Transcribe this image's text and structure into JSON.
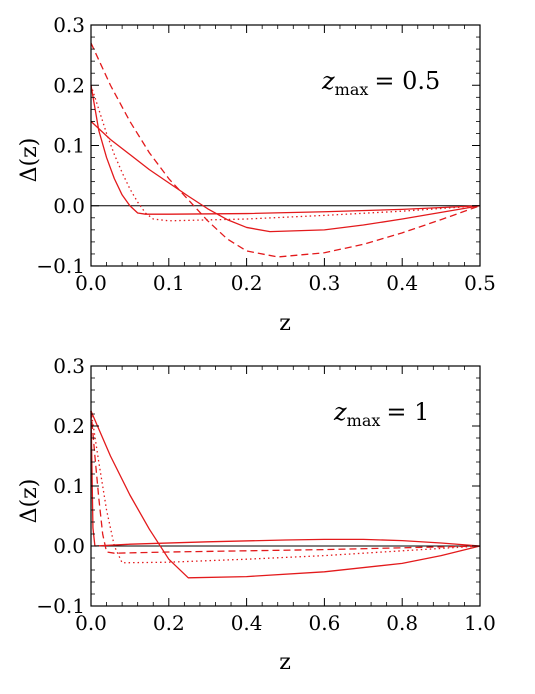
{
  "colors": {
    "series": "#e31a1c",
    "axis": "#000000"
  },
  "chart_data": [
    {
      "type": "line",
      "annotation": {
        "var": "z",
        "sub": "max",
        "rest": "= 0.5"
      },
      "xlabel": "z",
      "ylabel": "Δ(z)",
      "xlim": [
        0,
        0.5
      ],
      "ylim": [
        -0.1,
        0.3
      ],
      "xticks": [
        0,
        0.1,
        0.2,
        0.3,
        0.4,
        0.5
      ],
      "xtick_labels": [
        "0.0",
        "0.1",
        "0.2",
        "0.3",
        "0.4",
        "0.5"
      ],
      "yticks": [
        -0.1,
        0,
        0.1,
        0.2,
        0.3
      ],
      "ytick_labels": [
        "−0.1",
        "0.0",
        "0.1",
        "0.2",
        "0.3"
      ],
      "hline": 0,
      "series": [
        {
          "style": "solid",
          "x": [
            0,
            0.01,
            0.02,
            0.03,
            0.04,
            0.05,
            0.06,
            0.07,
            0.1,
            0.2,
            0.3,
            0.4,
            0.5
          ],
          "y": [
            0.2,
            0.125,
            0.08,
            0.045,
            0.018,
            0.0,
            -0.012,
            -0.014,
            -0.014,
            -0.013,
            -0.01,
            -0.006,
            0.0
          ]
        },
        {
          "style": "solid",
          "x": [
            0,
            0.025,
            0.05,
            0.075,
            0.1,
            0.125,
            0.15,
            0.175,
            0.2,
            0.23,
            0.3,
            0.35,
            0.4,
            0.45,
            0.5
          ],
          "y": [
            0.14,
            0.11,
            0.085,
            0.06,
            0.038,
            0.016,
            -0.005,
            -0.023,
            -0.036,
            -0.043,
            -0.04,
            -0.032,
            -0.022,
            -0.011,
            0.0
          ]
        },
        {
          "style": "dashed",
          "x": [
            0,
            0.025,
            0.05,
            0.075,
            0.1,
            0.125,
            0.15,
            0.175,
            0.2,
            0.24,
            0.3,
            0.35,
            0.4,
            0.45,
            0.5
          ],
          "y": [
            0.27,
            0.2,
            0.14,
            0.088,
            0.045,
            0.01,
            -0.025,
            -0.055,
            -0.075,
            -0.085,
            -0.078,
            -0.064,
            -0.045,
            -0.023,
            0.0
          ]
        },
        {
          "style": "dotted",
          "x": [
            0,
            0.01,
            0.02,
            0.03,
            0.04,
            0.05,
            0.06,
            0.07,
            0.08,
            0.1,
            0.2,
            0.3,
            0.4,
            0.5
          ],
          "y": [
            0.2,
            0.16,
            0.12,
            0.085,
            0.055,
            0.028,
            0.006,
            -0.012,
            -0.022,
            -0.025,
            -0.022,
            -0.016,
            -0.009,
            0.0
          ]
        }
      ]
    },
    {
      "type": "line",
      "annotation": {
        "var": "z",
        "sub": "max",
        "rest": "= 1"
      },
      "xlabel": "z",
      "ylabel": "Δ(z)",
      "xlim": [
        0,
        1.0
      ],
      "ylim": [
        -0.1,
        0.3
      ],
      "xticks": [
        0,
        0.2,
        0.4,
        0.6,
        0.8,
        1.0
      ],
      "xtick_labels": [
        "0.0",
        "0.2",
        "0.4",
        "0.6",
        "0.8",
        "1.0"
      ],
      "yticks": [
        -0.1,
        0,
        0.1,
        0.2,
        0.3
      ],
      "ytick_labels": [
        "−0.1",
        "0.0",
        "0.1",
        "0.2",
        "0.3"
      ],
      "hline": 0,
      "series": [
        {
          "style": "solid",
          "x": [
            0,
            0.05,
            0.1,
            0.15,
            0.2,
            0.25,
            0.4,
            0.6,
            0.8,
            0.9,
            1.0
          ],
          "y": [
            0.225,
            0.15,
            0.085,
            0.028,
            -0.022,
            -0.053,
            -0.051,
            -0.043,
            -0.029,
            -0.016,
            0.0
          ]
        },
        {
          "style": "solid",
          "x": [
            0,
            0.005,
            0.01,
            0.1,
            0.3,
            0.5,
            0.6,
            0.7,
            0.8,
            0.9,
            1.0
          ],
          "y": [
            0.225,
            0.03,
            0.0,
            0.003,
            0.007,
            0.01,
            0.011,
            0.011,
            0.009,
            0.005,
            0.0
          ]
        },
        {
          "style": "dashed",
          "x": [
            0,
            0.01,
            0.02,
            0.03,
            0.04,
            0.06,
            0.2,
            0.4,
            0.6,
            0.8,
            1.0
          ],
          "y": [
            0.225,
            0.15,
            0.08,
            0.02,
            -0.01,
            -0.012,
            -0.01,
            -0.008,
            -0.006,
            -0.003,
            0.0
          ]
        },
        {
          "style": "dotted",
          "x": [
            0,
            0.02,
            0.04,
            0.06,
            0.08,
            0.2,
            0.4,
            0.6,
            0.8,
            1.0
          ],
          "y": [
            0.225,
            0.14,
            0.06,
            0.0,
            -0.028,
            -0.027,
            -0.022,
            -0.016,
            -0.008,
            0.0
          ]
        }
      ]
    }
  ]
}
